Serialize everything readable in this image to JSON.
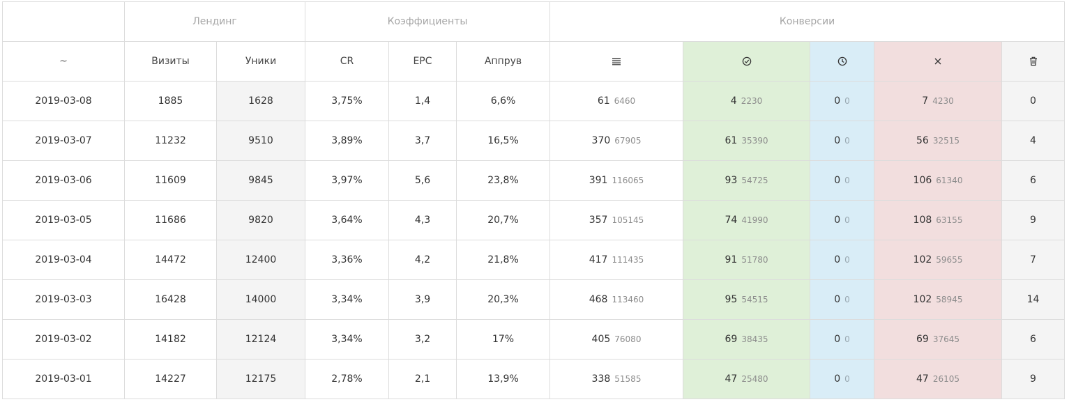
{
  "groups": {
    "landing": "Лендинг",
    "ratios": "Коэффициенты",
    "conversions": "Конверсии"
  },
  "columns": {
    "date": "~",
    "visits": "Визиты",
    "uniques": "Уники",
    "cr": "CR",
    "epc": "EPC",
    "approve": "Аппрув"
  },
  "icons": {
    "all": "list-icon",
    "approved": "check-circle-icon",
    "pending": "clock-icon",
    "rejected": "close-icon",
    "trash": "trash-icon"
  },
  "colors": {
    "approved_bg": "#dff0d8",
    "pending_bg": "#d9edf7",
    "rejected_bg": "#f2dede",
    "shade_bg": "#f4f4f4"
  },
  "rows": [
    {
      "date": "2019-03-08",
      "visits": "1885",
      "uniques": "1628",
      "cr": "3,75%",
      "epc": "1,4",
      "approve": "6,6%",
      "all": "61",
      "all_sum": "6460",
      "approved": "4",
      "approved_sum": "2230",
      "pending": "0",
      "pending_sum": "0",
      "rejected": "7",
      "rejected_sum": "4230",
      "trash": "0"
    },
    {
      "date": "2019-03-07",
      "visits": "11232",
      "uniques": "9510",
      "cr": "3,89%",
      "epc": "3,7",
      "approve": "16,5%",
      "all": "370",
      "all_sum": "67905",
      "approved": "61",
      "approved_sum": "35390",
      "pending": "0",
      "pending_sum": "0",
      "rejected": "56",
      "rejected_sum": "32515",
      "trash": "4"
    },
    {
      "date": "2019-03-06",
      "visits": "11609",
      "uniques": "9845",
      "cr": "3,97%",
      "epc": "5,6",
      "approve": "23,8%",
      "all": "391",
      "all_sum": "116065",
      "approved": "93",
      "approved_sum": "54725",
      "pending": "0",
      "pending_sum": "0",
      "rejected": "106",
      "rejected_sum": "61340",
      "trash": "6"
    },
    {
      "date": "2019-03-05",
      "visits": "11686",
      "uniques": "9820",
      "cr": "3,64%",
      "epc": "4,3",
      "approve": "20,7%",
      "all": "357",
      "all_sum": "105145",
      "approved": "74",
      "approved_sum": "41990",
      "pending": "0",
      "pending_sum": "0",
      "rejected": "108",
      "rejected_sum": "63155",
      "trash": "9"
    },
    {
      "date": "2019-03-04",
      "visits": "14472",
      "uniques": "12400",
      "cr": "3,36%",
      "epc": "4,2",
      "approve": "21,8%",
      "all": "417",
      "all_sum": "111435",
      "approved": "91",
      "approved_sum": "51780",
      "pending": "0",
      "pending_sum": "0",
      "rejected": "102",
      "rejected_sum": "59655",
      "trash": "7"
    },
    {
      "date": "2019-03-03",
      "visits": "16428",
      "uniques": "14000",
      "cr": "3,34%",
      "epc": "3,9",
      "approve": "20,3%",
      "all": "468",
      "all_sum": "113460",
      "approved": "95",
      "approved_sum": "54515",
      "pending": "0",
      "pending_sum": "0",
      "rejected": "102",
      "rejected_sum": "58945",
      "trash": "14"
    },
    {
      "date": "2019-03-02",
      "visits": "14182",
      "uniques": "12124",
      "cr": "3,34%",
      "epc": "3,2",
      "approve": "17%",
      "all": "405",
      "all_sum": "76080",
      "approved": "69",
      "approved_sum": "38435",
      "pending": "0",
      "pending_sum": "0",
      "rejected": "69",
      "rejected_sum": "37645",
      "trash": "6"
    },
    {
      "date": "2019-03-01",
      "visits": "14227",
      "uniques": "12175",
      "cr": "2,78%",
      "epc": "2,1",
      "approve": "13,9%",
      "all": "338",
      "all_sum": "51585",
      "approved": "47",
      "approved_sum": "25480",
      "pending": "0",
      "pending_sum": "0",
      "rejected": "47",
      "rejected_sum": "26105",
      "trash": "9"
    }
  ]
}
